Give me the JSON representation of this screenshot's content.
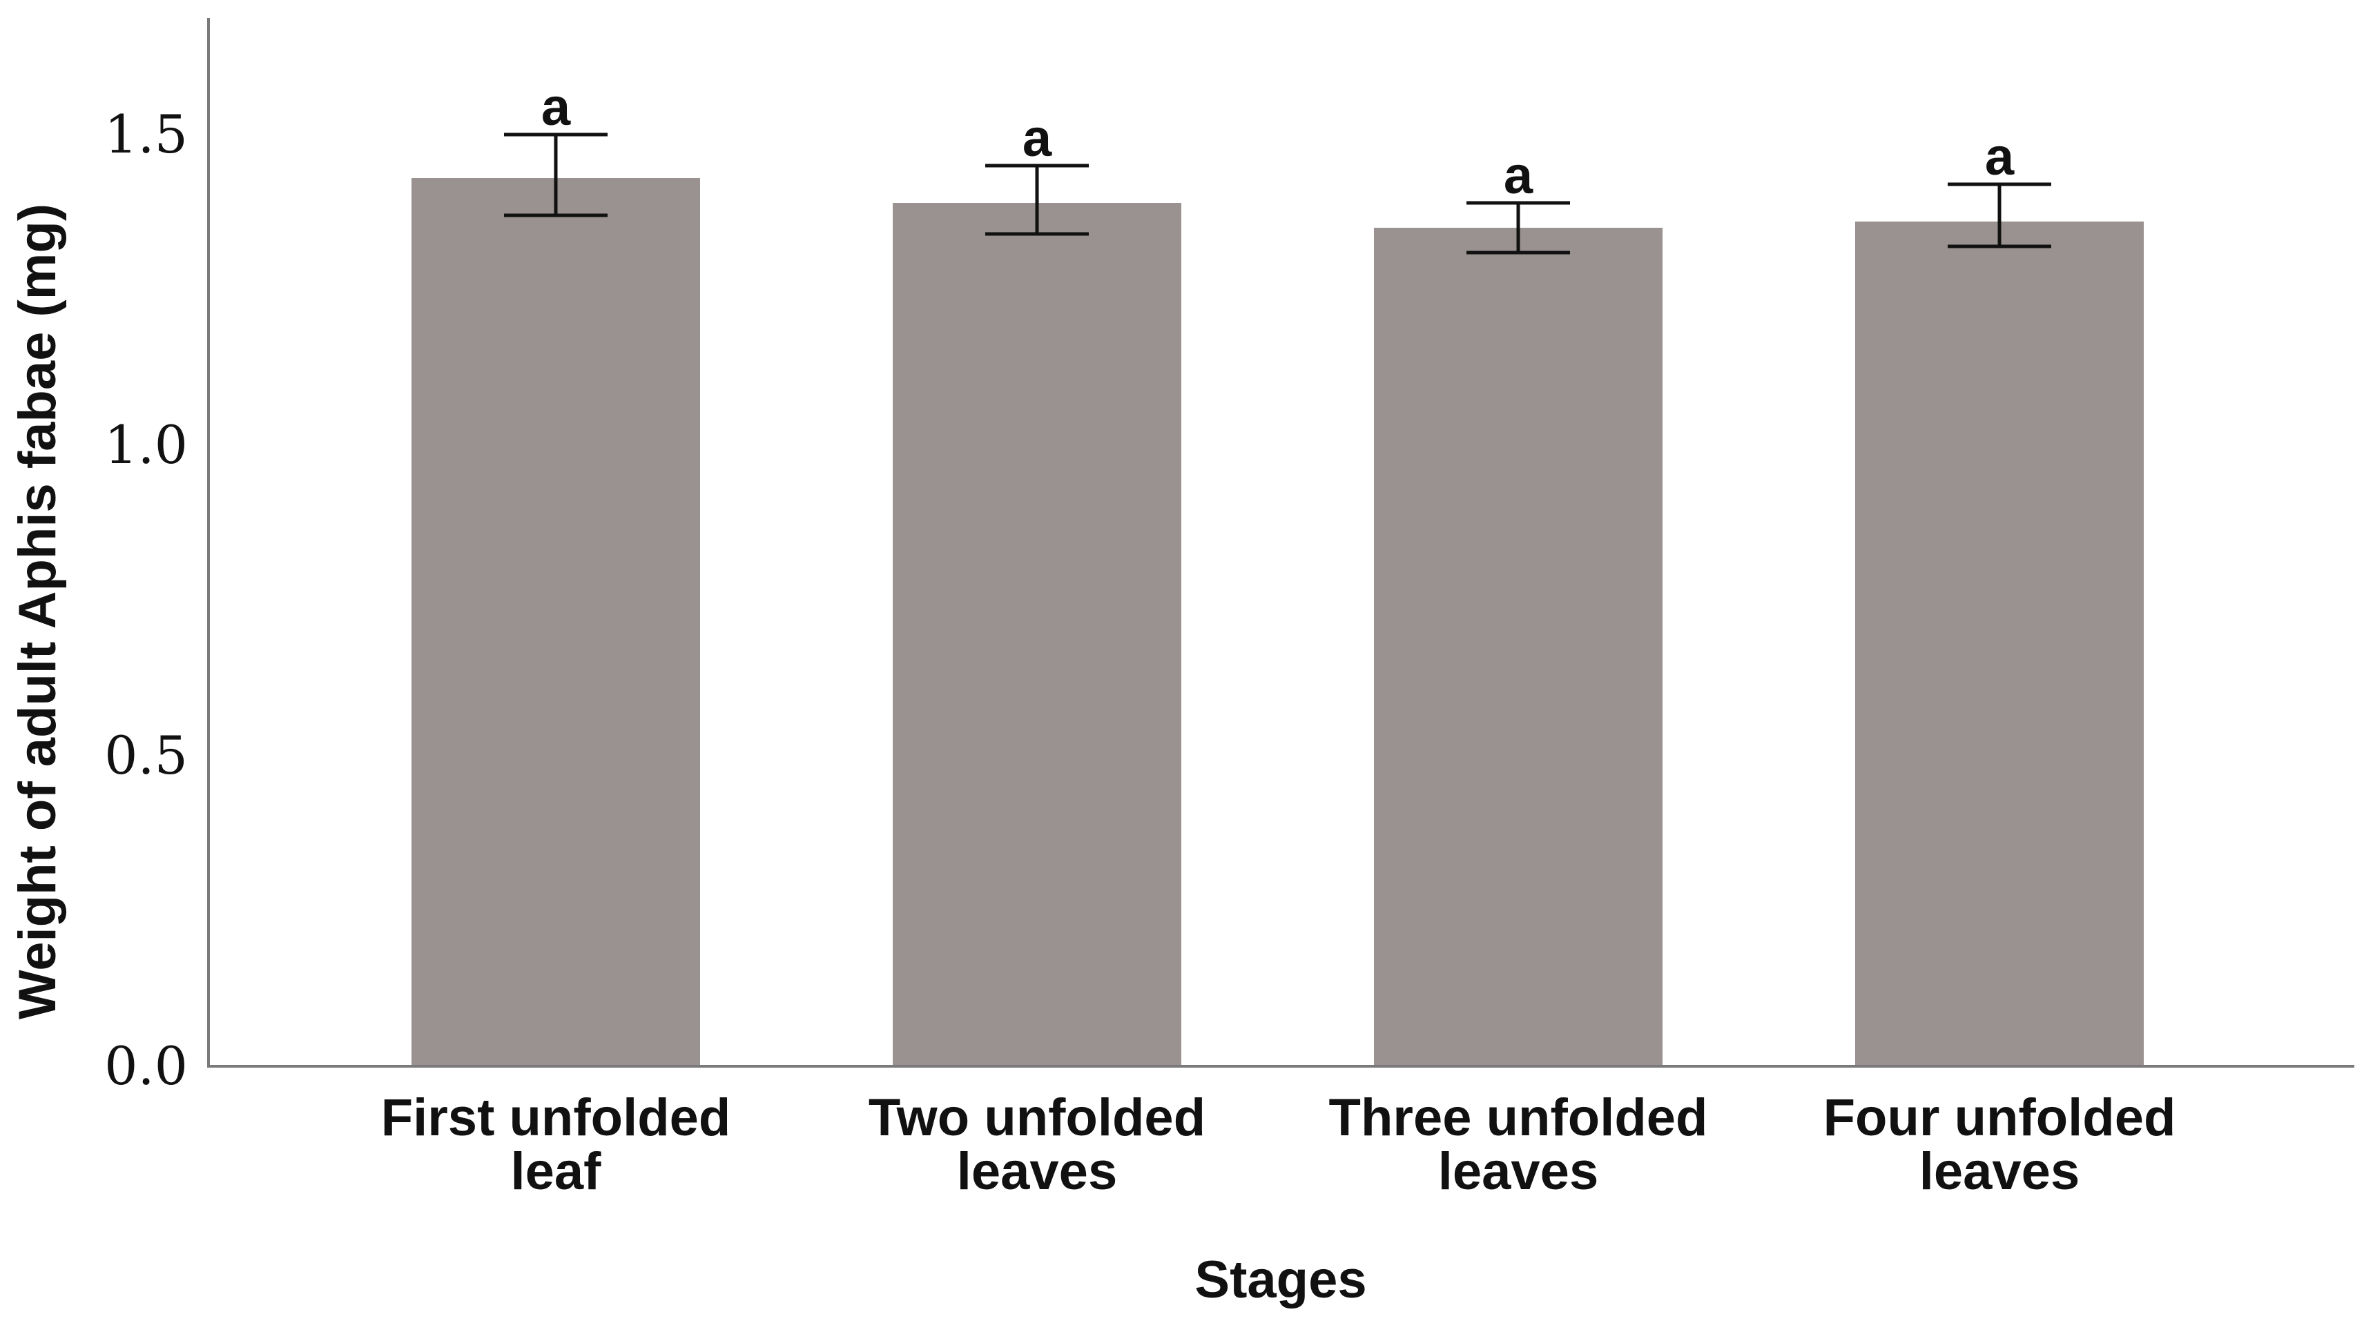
{
  "chart_data": {
    "type": "bar",
    "categories": [
      [
        "First unfolded",
        "leaf"
      ],
      [
        "Two unfolded",
        "leaves"
      ],
      [
        "Three unfolded",
        "leaves"
      ],
      [
        "Four unfolded",
        "leaves"
      ]
    ],
    "values": [
      1.43,
      1.39,
      1.35,
      1.36
    ],
    "error_low": [
      1.37,
      1.34,
      1.31,
      1.32
    ],
    "error_high": [
      1.5,
      1.45,
      1.39,
      1.42
    ],
    "significance": [
      "a",
      "a",
      "a",
      "a"
    ],
    "xlabel": "Stages",
    "ylabel": "Weight of adult Aphis fabae (mg)",
    "ylim": [
      0,
      1.6
    ],
    "yticks": [
      {
        "value": 0.0,
        "label": "0.0"
      },
      {
        "value": 0.5,
        "label": "0.5"
      },
      {
        "value": 1.0,
        "label": "1.0"
      },
      {
        "value": 1.5,
        "label": "1.5"
      }
    ],
    "bar_color": "#9a9290",
    "grid": false
  }
}
